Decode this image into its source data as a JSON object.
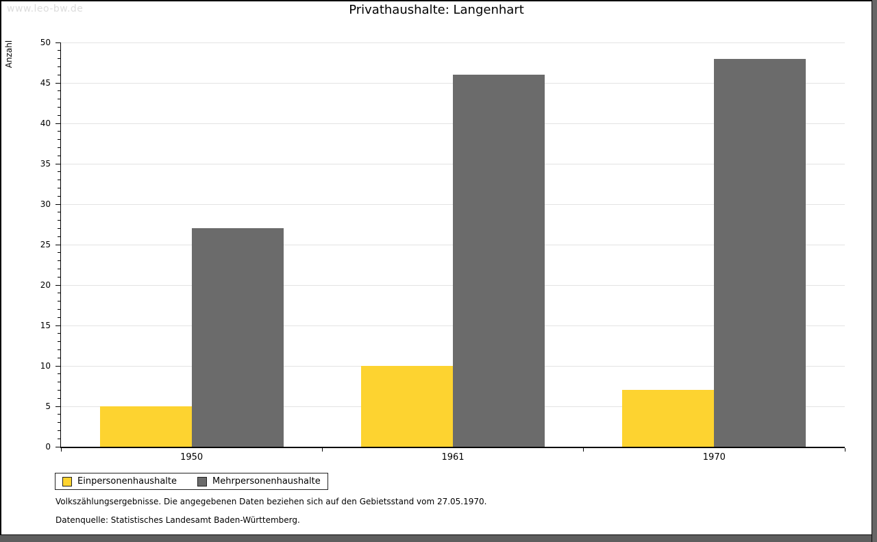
{
  "watermark": "www.leo-bw.de",
  "title": "Privathaushalte: Langenhart",
  "chart_data": {
    "type": "bar",
    "title": "Privathaushalte: Langenhart",
    "categories": [
      "1950",
      "1961",
      "1970"
    ],
    "series": [
      {
        "name": "Einpersonenhaushalte",
        "color": "#FDD330",
        "values": [
          5,
          10,
          7
        ]
      },
      {
        "name": "Mehrpersonenhaushalte",
        "color": "#6B6B6B",
        "values": [
          27,
          46,
          48
        ]
      }
    ],
    "xlabel": "",
    "ylabel": "Anzahl",
    "ylim": [
      0,
      50
    ],
    "ytick_step": 5,
    "minor_tick_step": 1,
    "grid": true,
    "gridline_color": "#e3e3e3",
    "legend_position": "bottom-left"
  },
  "footnotes": [
    "Volkszählungsergebnisse. Die angegebenen Daten beziehen sich auf den Gebietsstand vom 27.05.1970.",
    "Datenquelle: Statistisches Landesamt Baden-Württemberg."
  ]
}
